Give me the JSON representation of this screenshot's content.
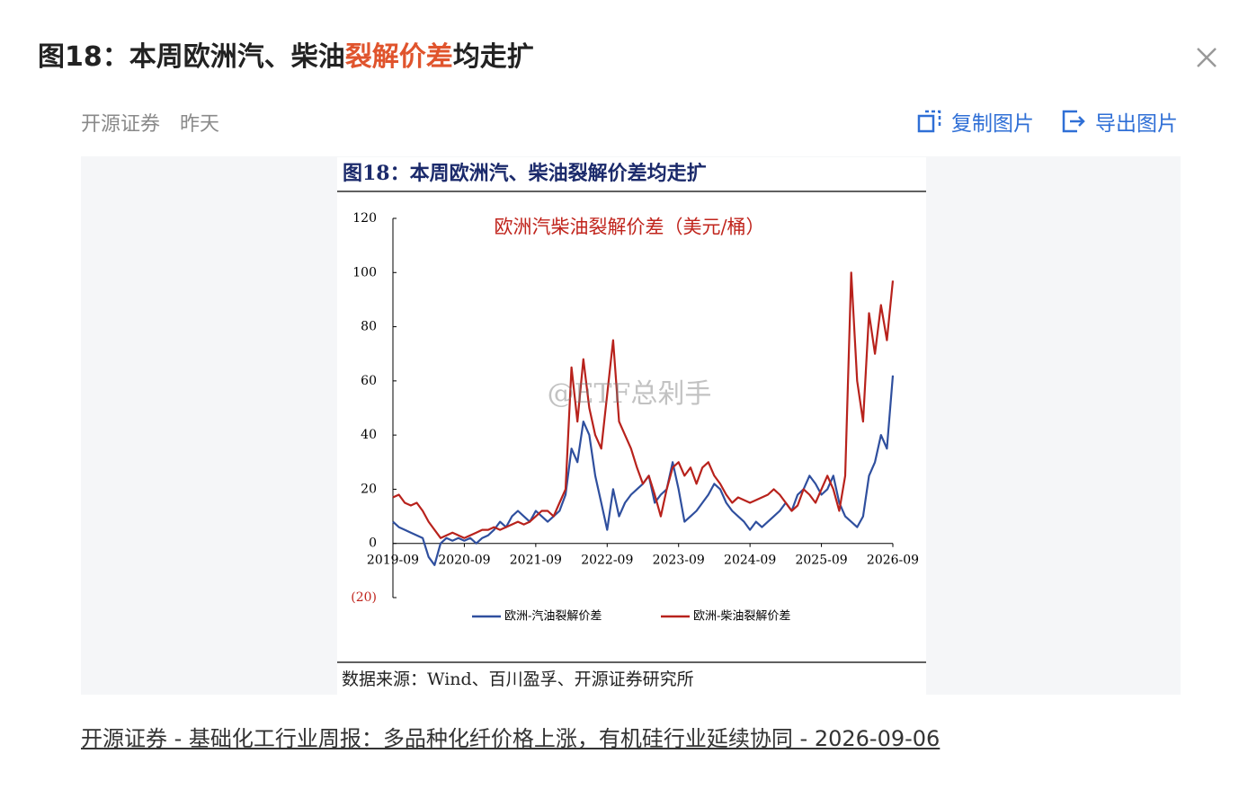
{
  "header": {
    "title": [
      "图18：本周欧洲汽、柴油",
      "裂解价差",
      "均走扩"
    ]
  },
  "meta": {
    "source": "开源证券",
    "time": "昨天"
  },
  "actions": {
    "copy": "复制图片",
    "export": "导出图片"
  },
  "watermark": "@ETF总剁手",
  "footer": {
    "link": "开源证券 - 基础化工行业周报：多品种化纤价格上涨，有机硅行业延续协同 - 2026-09-06"
  },
  "chart_data": {
    "type": "line",
    "title": "图18：本周欧洲汽、柴油裂解价差均走扩",
    "subtitle": "欧洲汽柴油裂解价差（美元/桶）",
    "source": "数据来源：Wind、百川盈孚、开源证券研究所",
    "x": [
      "2019-09",
      "2019-10",
      "2019-11",
      "2019-12",
      "2020-01",
      "2020-02",
      "2020-03",
      "2020-04",
      "2020-05",
      "2020-06",
      "2020-07",
      "2020-08",
      "2020-09",
      "2020-10",
      "2020-11",
      "2020-12",
      "2021-01",
      "2021-02",
      "2021-03",
      "2021-04",
      "2021-05",
      "2021-06",
      "2021-07",
      "2021-08",
      "2021-09",
      "2021-10",
      "2021-11",
      "2021-12",
      "2022-01",
      "2022-02",
      "2022-03",
      "2022-04",
      "2022-05",
      "2022-06",
      "2022-07",
      "2022-08",
      "2022-09",
      "2022-10",
      "2022-11",
      "2022-12",
      "2023-01",
      "2023-02",
      "2023-03",
      "2023-04",
      "2023-05",
      "2023-06",
      "2023-07",
      "2023-08",
      "2023-09",
      "2023-10",
      "2023-11",
      "2023-12",
      "2024-01",
      "2024-02",
      "2024-03",
      "2024-04",
      "2024-05",
      "2024-06",
      "2024-07",
      "2024-08",
      "2024-09",
      "2024-10",
      "2024-11",
      "2024-12",
      "2025-01",
      "2025-02",
      "2025-03",
      "2025-04",
      "2025-05",
      "2025-06",
      "2025-07",
      "2025-08",
      "2025-09",
      "2025-10",
      "2025-11",
      "2025-12",
      "2026-01",
      "2026-02",
      "2026-03",
      "2026-04",
      "2026-05",
      "2026-06",
      "2026-07",
      "2026-08",
      "2026-09"
    ],
    "xlim": [
      "2019-09",
      "2026-09"
    ],
    "xticks": [
      "2019-09",
      "2020-09",
      "2021-09",
      "2022-09",
      "2023-09",
      "2024-09",
      "2025-09",
      "2026-09"
    ],
    "ylim": [
      -20,
      120
    ],
    "yticks": [
      {
        "value": -20,
        "label": "(20)"
      },
      0,
      20,
      40,
      60,
      80,
      100,
      120
    ],
    "series": [
      {
        "name": "欧洲-汽油裂解价差",
        "color": "#2f4f9e",
        "values": [
          8,
          6,
          5,
          4,
          3,
          2,
          -5,
          -8,
          0,
          2,
          1,
          2,
          1,
          2,
          0,
          2,
          3,
          5,
          8,
          6,
          10,
          12,
          10,
          8,
          12,
          10,
          8,
          10,
          12,
          18,
          35,
          30,
          45,
          40,
          25,
          15,
          5,
          20,
          10,
          15,
          18,
          20,
          22,
          25,
          15,
          18,
          20,
          30,
          20,
          8,
          10,
          12,
          15,
          18,
          22,
          20,
          15,
          12,
          10,
          8,
          5,
          8,
          6,
          8,
          10,
          12,
          15,
          12,
          18,
          20,
          25,
          22,
          18,
          20,
          25,
          15,
          10,
          8,
          6,
          10,
          25,
          30,
          40,
          35,
          62
        ]
      },
      {
        "name": "欧洲-柴油裂解价差",
        "color": "#b8221c",
        "values": [
          17,
          18,
          15,
          14,
          15,
          12,
          8,
          5,
          2,
          3,
          4,
          3,
          2,
          3,
          4,
          5,
          5,
          6,
          5,
          6,
          7,
          8,
          7,
          8,
          10,
          12,
          12,
          10,
          15,
          20,
          65,
          45,
          68,
          50,
          40,
          35,
          55,
          75,
          45,
          40,
          35,
          28,
          22,
          25,
          18,
          10,
          20,
          28,
          30,
          25,
          28,
          22,
          28,
          30,
          25,
          22,
          18,
          15,
          17,
          16,
          15,
          16,
          17,
          18,
          20,
          18,
          15,
          12,
          14,
          20,
          18,
          15,
          20,
          25,
          20,
          12,
          25,
          100,
          60,
          45,
          85,
          70,
          88,
          75,
          97
        ]
      }
    ]
  }
}
